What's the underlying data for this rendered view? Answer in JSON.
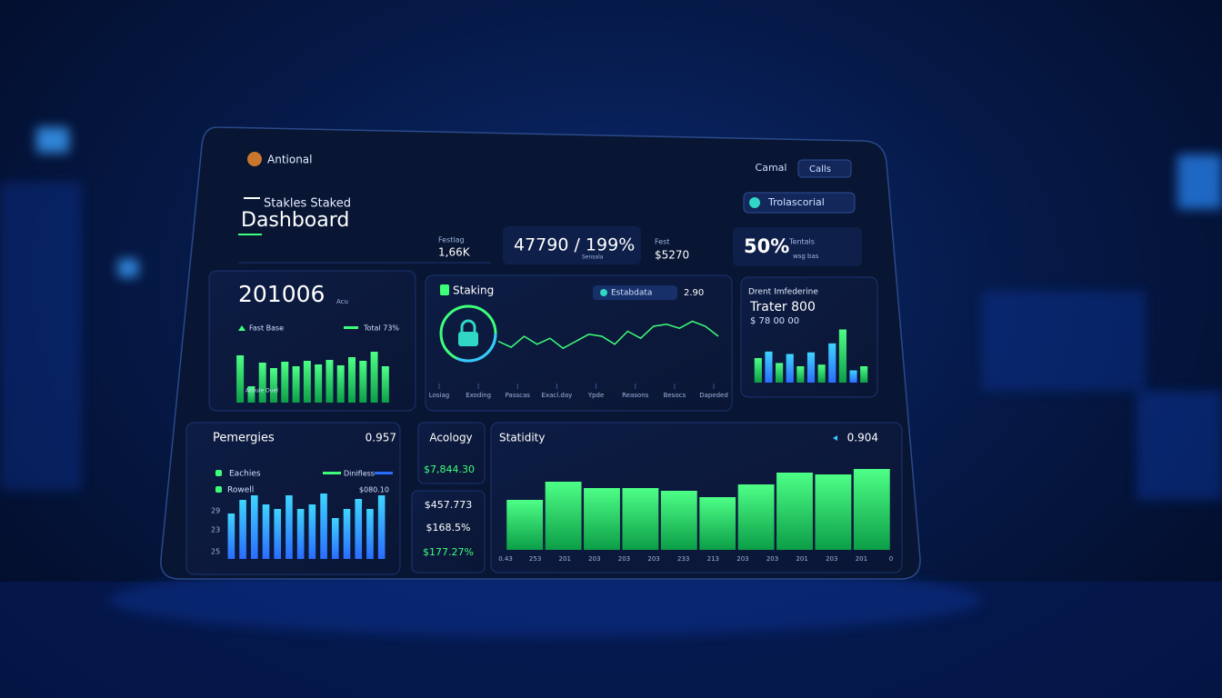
{
  "brand": "Antional",
  "header": {
    "pre_title": "Stakles Staked",
    "title": "Dashboard",
    "buttons": [
      "Camal",
      "Calls"
    ],
    "badge": "Trolascorial"
  },
  "stats": [
    {
      "label": "Festlag",
      "value": "1,66K"
    },
    {
      "value": "47790 / 199%",
      "label": "Sensala"
    },
    {
      "label": "Fest",
      "value": "$5270"
    },
    {
      "value": "50%",
      "label": "Tentals",
      "sub": "wsg bas"
    }
  ],
  "panels": {
    "overview": {
      "value": "201006",
      "unit": "Acu",
      "legend": [
        "Fast Base",
        "Total 73%"
      ],
      "note": "Acoule Ouel",
      "chart": {
        "type": "bar",
        "values": [
          52,
          18,
          44,
          38,
          45,
          40,
          46,
          42,
          47,
          41,
          50,
          46,
          56,
          40
        ],
        "ylim": [
          0,
          100
        ]
      }
    },
    "staking": {
      "title": "Staking",
      "chip": "Estabdata",
      "chip_value": "2.90",
      "chart": {
        "type": "line",
        "values": [
          30,
          18,
          40,
          24,
          36,
          16,
          30,
          44,
          40,
          24,
          50,
          36,
          60,
          64,
          56,
          70,
          60,
          40
        ],
        "ylim": [
          0,
          100
        ]
      },
      "labels": [
        "Losiag",
        "Exoding",
        "Passcas",
        "Exacl.day",
        "Ypde",
        "Reasons",
        "Besocs",
        "Dapeded"
      ]
    },
    "trader": {
      "title": "Drent Imfederine",
      "value": "Trater 800",
      "sub": "$ 78 00 00",
      "chart": {
        "type": "bar",
        "values": [
          30,
          38,
          24,
          35,
          20,
          37,
          22,
          48,
          65,
          15,
          20
        ],
        "ylim": [
          0,
          100
        ]
      }
    },
    "pemergies": {
      "title": "Pemergies",
      "value": "0.957",
      "legend": [
        "Eachies",
        "Rowell",
        "Dinifless"
      ],
      "legend_value": "$080.10",
      "axis_labels": [
        "29",
        "23",
        "25"
      ],
      "chart": {
        "type": "bar",
        "values": [
          50,
          65,
          70,
          60,
          55,
          70,
          55,
          60,
          72,
          45,
          55,
          66,
          55,
          70
        ],
        "ylim": [
          0,
          100
        ]
      }
    },
    "acology": {
      "title": "Acology",
      "value": "$7,844.30",
      "list": [
        "$457.773",
        "$168.5%",
        "$177.27%"
      ]
    },
    "statidity": {
      "title": "Statidity",
      "value": "0.904",
      "chart": {
        "type": "bar",
        "values": [
          55,
          75,
          68,
          68,
          65,
          58,
          72,
          85,
          83,
          89
        ],
        "ylim": [
          0,
          100
        ]
      },
      "labels": [
        "0.43",
        "253",
        "201",
        "203",
        "203",
        "203",
        "233",
        "213",
        "203",
        "203",
        "201",
        "203",
        "201",
        "0"
      ]
    }
  }
}
